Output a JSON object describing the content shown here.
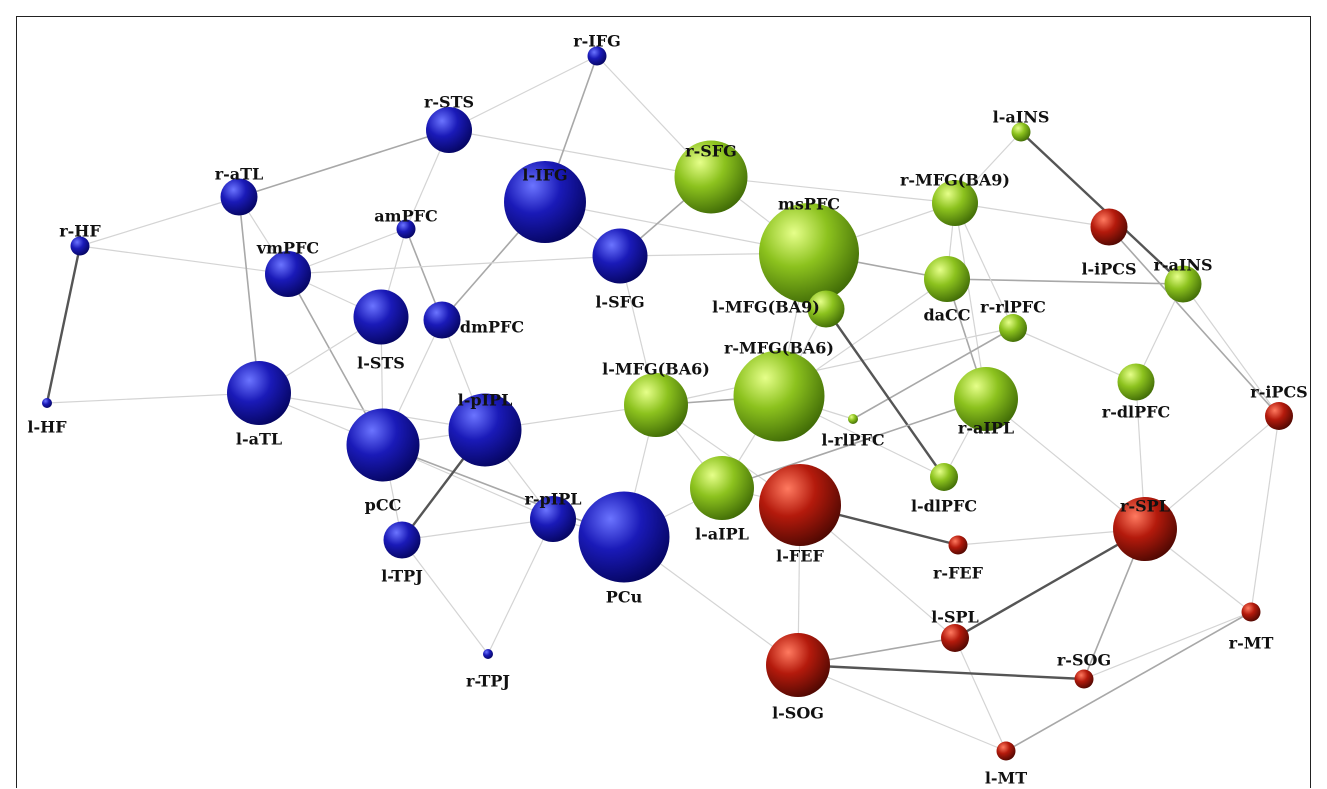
{
  "colors": {
    "blue": "#1a1ab8",
    "green": "#8cc21e",
    "red": "#b41a0c",
    "edge_light": "#d4d4d4",
    "edge_mid": "#a8a8a8",
    "edge_dark": "#555555"
  },
  "nodes": [
    {
      "id": "r-IFG",
      "label": "r-IFG",
      "group": "blue",
      "size": 1
    },
    {
      "id": "r-STS",
      "label": "r-STS",
      "group": "blue",
      "size": 4
    },
    {
      "id": "r-aTL",
      "label": "r-aTL",
      "group": "blue",
      "size": 3
    },
    {
      "id": "l-IFG",
      "label": "l-IFG",
      "group": "blue",
      "size": 8
    },
    {
      "id": "amPFC",
      "label": "amPFC",
      "group": "blue",
      "size": 1
    },
    {
      "id": "r-HF",
      "label": "r-HF",
      "group": "blue",
      "size": 1
    },
    {
      "id": "vmPFC",
      "label": "vmPFC",
      "group": "blue",
      "size": 4
    },
    {
      "id": "l-SFG",
      "label": "l-SFG",
      "group": "blue",
      "size": 5
    },
    {
      "id": "l-STS",
      "label": "l-STS",
      "group": "blue",
      "size": 5
    },
    {
      "id": "dmPFC",
      "label": "dmPFC",
      "group": "blue",
      "size": 3
    },
    {
      "id": "l-HF",
      "label": "l-HF",
      "group": "blue",
      "size": 0
    },
    {
      "id": "l-aTL",
      "label": "l-aTL",
      "group": "blue",
      "size": 6
    },
    {
      "id": "l-pIPL",
      "label": "l-pIPL",
      "group": "blue",
      "size": 7
    },
    {
      "id": "pCC",
      "label": "pCC",
      "group": "blue",
      "size": 7
    },
    {
      "id": "r-pIPL",
      "label": "r-pIPL",
      "group": "blue",
      "size": 4
    },
    {
      "id": "l-TPJ",
      "label": "l-TPJ",
      "group": "blue",
      "size": 3
    },
    {
      "id": "PCu",
      "label": "PCu",
      "group": "blue",
      "size": 9
    },
    {
      "id": "r-TPJ",
      "label": "r-TPJ",
      "group": "blue",
      "size": 0
    },
    {
      "id": "r-SFG",
      "label": "r-SFG",
      "group": "green",
      "size": 7
    },
    {
      "id": "msPFC",
      "label": "msPFC",
      "group": "green",
      "size": 10
    },
    {
      "id": "l-MFG(BA9)",
      "label": "l-MFG(BA9)",
      "group": "green",
      "size": 3
    },
    {
      "id": "r-MFG(BA9)",
      "label": "r-MFG(BA9)",
      "group": "green",
      "size": 4
    },
    {
      "id": "daCC",
      "label": "daCC",
      "group": "green",
      "size": 4
    },
    {
      "id": "l-aINS",
      "label": "l-aINS",
      "group": "green",
      "size": 1
    },
    {
      "id": "r-aINS",
      "label": "r-aINS",
      "group": "green",
      "size": 3
    },
    {
      "id": "r-rlPFC",
      "label": "r-rlPFC",
      "group": "green",
      "size": 2
    },
    {
      "id": "l-MFG(BA6)",
      "label": "l-MFG(BA6)",
      "group": "green",
      "size": 6
    },
    {
      "id": "r-MFG(BA6)",
      "label": "r-MFG(BA6)",
      "group": "green",
      "size": 9
    },
    {
      "id": "l-rlPFC",
      "label": "l-rlPFC",
      "group": "green",
      "size": 0
    },
    {
      "id": "r-aIPL",
      "label": "r-aIPL",
      "group": "green",
      "size": 6
    },
    {
      "id": "r-dlPFC",
      "label": "r-dlPFC",
      "group": "green",
      "size": 3
    },
    {
      "id": "l-dlPFC",
      "label": "l-dlPFC",
      "group": "green",
      "size": 2
    },
    {
      "id": "l-aIPL",
      "label": "l-aIPL",
      "group": "green",
      "size": 6
    },
    {
      "id": "l-iPCS",
      "label": "l-iPCS",
      "group": "red",
      "size": 3
    },
    {
      "id": "r-iPCS",
      "label": "r-iPCS",
      "group": "red",
      "size": 2
    },
    {
      "id": "l-FEF",
      "label": "l-FEF",
      "group": "red",
      "size": 8
    },
    {
      "id": "r-FEF",
      "label": "r-FEF",
      "group": "red",
      "size": 1
    },
    {
      "id": "r-SPL",
      "label": "r-SPL",
      "group": "red",
      "size": 6
    },
    {
      "id": "l-SPL",
      "label": "l-SPL",
      "group": "red",
      "size": 2
    },
    {
      "id": "r-MT",
      "label": "r-MT",
      "group": "red",
      "size": 1
    },
    {
      "id": "r-SOG",
      "label": "r-SOG",
      "group": "red",
      "size": 1
    },
    {
      "id": "l-SOG",
      "label": "l-SOG",
      "group": "red",
      "size": 6
    },
    {
      "id": "l-MT",
      "label": "l-MT",
      "group": "red",
      "size": 1
    }
  ],
  "edges": [
    [
      "r-HF",
      "l-HF",
      3
    ],
    [
      "r-HF",
      "r-aTL",
      1
    ],
    [
      "r-HF",
      "vmPFC",
      1
    ],
    [
      "l-HF",
      "l-aTL",
      1
    ],
    [
      "r-aTL",
      "r-STS",
      2
    ],
    [
      "r-aTL",
      "l-aTL",
      2
    ],
    [
      "r-aTL",
      "vmPFC",
      1
    ],
    [
      "r-STS",
      "r-IFG",
      1
    ],
    [
      "r-STS",
      "amPFC",
      1
    ],
    [
      "r-STS",
      "r-SFG",
      1
    ],
    [
      "r-IFG",
      "l-IFG",
      2
    ],
    [
      "r-IFG",
      "r-SFG",
      1
    ],
    [
      "l-IFG",
      "l-SFG",
      1
    ],
    [
      "l-IFG",
      "dmPFC",
      2
    ],
    [
      "l-IFG",
      "msPFC",
      1
    ],
    [
      "amPFC",
      "vmPFC",
      1
    ],
    [
      "amPFC",
      "dmPFC",
      2
    ],
    [
      "amPFC",
      "l-STS",
      1
    ],
    [
      "vmPFC",
      "pCC",
      2
    ],
    [
      "vmPFC",
      "l-SFG",
      1
    ],
    [
      "vmPFC",
      "l-STS",
      1
    ],
    [
      "dmPFC",
      "l-pIPL",
      1
    ],
    [
      "dmPFC",
      "pCC",
      1
    ],
    [
      "l-SFG",
      "r-SFG",
      2
    ],
    [
      "l-SFG",
      "l-MFG(BA6)",
      1
    ],
    [
      "l-SFG",
      "msPFC",
      1
    ],
    [
      "l-STS",
      "l-aTL",
      1
    ],
    [
      "l-STS",
      "pCC",
      1
    ],
    [
      "l-aTL",
      "pCC",
      1
    ],
    [
      "l-aTL",
      "l-pIPL",
      1
    ],
    [
      "pCC",
      "l-pIPL",
      1
    ],
    [
      "pCC",
      "PCu",
      2
    ],
    [
      "pCC",
      "l-TPJ",
      1
    ],
    [
      "pCC",
      "r-pIPL",
      1
    ],
    [
      "l-pIPL",
      "l-TPJ",
      3
    ],
    [
      "l-pIPL",
      "r-pIPL",
      1
    ],
    [
      "l-pIPL",
      "l-MFG(BA6)",
      1
    ],
    [
      "l-TPJ",
      "r-pIPL",
      1
    ],
    [
      "l-TPJ",
      "r-TPJ",
      1
    ],
    [
      "r-pIPL",
      "r-TPJ",
      1
    ],
    [
      "r-pIPL",
      "PCu",
      1
    ],
    [
      "PCu",
      "l-aIPL",
      1
    ],
    [
      "PCu",
      "l-SOG",
      1
    ],
    [
      "PCu",
      "l-MFG(BA6)",
      1
    ],
    [
      "r-SFG",
      "msPFC",
      1
    ],
    [
      "r-SFG",
      "r-MFG(BA9)",
      1
    ],
    [
      "msPFC",
      "daCC",
      2
    ],
    [
      "msPFC",
      "l-MFG(BA9)",
      1
    ],
    [
      "msPFC",
      "r-MFG(BA9)",
      1
    ],
    [
      "msPFC",
      "r-MFG(BA6)",
      1
    ],
    [
      "l-aINS",
      "r-aINS",
      3
    ],
    [
      "l-aINS",
      "r-MFG(BA9)",
      1
    ],
    [
      "l-iPCS",
      "r-iPCS",
      2
    ],
    [
      "l-iPCS",
      "r-MFG(BA9)",
      1
    ],
    [
      "r-aINS",
      "daCC",
      2
    ],
    [
      "r-aINS",
      "r-iPCS",
      1
    ],
    [
      "r-aINS",
      "r-dlPFC",
      1
    ],
    [
      "r-MFG(BA9)",
      "daCC",
      1
    ],
    [
      "r-MFG(BA9)",
      "r-aIPL",
      1
    ],
    [
      "r-MFG(BA9)",
      "r-rlPFC",
      1
    ],
    [
      "daCC",
      "r-aIPL",
      2
    ],
    [
      "daCC",
      "r-MFG(BA6)",
      1
    ],
    [
      "r-rlPFC",
      "l-rlPFC",
      2
    ],
    [
      "r-rlPFC",
      "r-dlPFC",
      1
    ],
    [
      "r-rlPFC",
      "l-MFG(BA6)",
      1
    ],
    [
      "l-MFG(BA9)",
      "l-dlPFC",
      3
    ],
    [
      "l-MFG(BA9)",
      "r-MFG(BA6)",
      1
    ],
    [
      "l-MFG(BA6)",
      "r-MFG(BA6)",
      2
    ],
    [
      "l-MFG(BA6)",
      "l-FEF",
      1
    ],
    [
      "l-MFG(BA6)",
      "l-aIPL",
      1
    ],
    [
      "r-MFG(BA6)",
      "l-aIPL",
      1
    ],
    [
      "r-MFG(BA6)",
      "l-dlPFC",
      1
    ],
    [
      "r-MFG(BA6)",
      "l-rlPFC",
      1
    ],
    [
      "r-aIPL",
      "l-aIPL",
      2
    ],
    [
      "r-aIPL",
      "r-SPL",
      1
    ],
    [
      "r-aIPL",
      "l-dlPFC",
      1
    ],
    [
      "r-dlPFC",
      "r-SPL",
      1
    ],
    [
      "l-aIPL",
      "l-FEF",
      1
    ],
    [
      "l-FEF",
      "r-FEF",
      3
    ],
    [
      "l-FEF",
      "l-SOG",
      1
    ],
    [
      "l-FEF",
      "l-SPL",
      1
    ],
    [
      "r-FEF",
      "r-SPL",
      1
    ],
    [
      "r-iPCS",
      "r-SPL",
      1
    ],
    [
      "r-iPCS",
      "r-MT",
      1
    ],
    [
      "r-SPL",
      "l-SPL",
      3
    ],
    [
      "r-SPL",
      "r-SOG",
      2
    ],
    [
      "r-SPL",
      "r-MT",
      1
    ],
    [
      "l-SPL",
      "l-SOG",
      2
    ],
    [
      "l-SPL",
      "l-MT",
      1
    ],
    [
      "l-SOG",
      "r-SOG",
      3
    ],
    [
      "l-SOG",
      "l-MT",
      1
    ],
    [
      "r-SOG",
      "r-MT",
      1
    ],
    [
      "r-MT",
      "l-MT",
      2
    ]
  ]
}
